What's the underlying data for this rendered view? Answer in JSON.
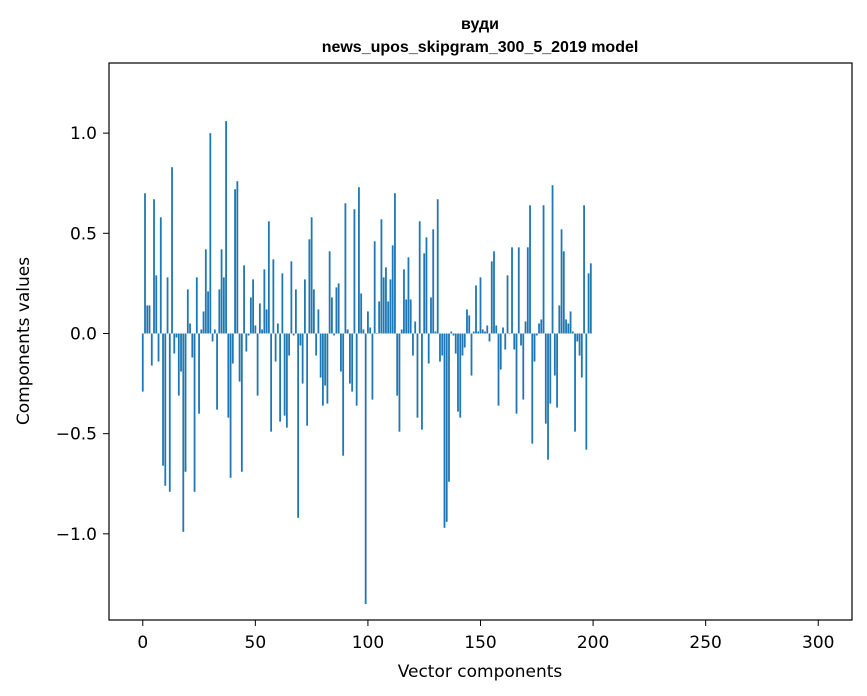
{
  "chart_data": {
    "type": "bar",
    "title_line1": "вуди",
    "title_line2": "news_upos_skipgram_300_5_2019 model",
    "xlabel": "Vector components",
    "ylabel": "Components values",
    "xlim": [
      -15,
      315
    ],
    "ylim": [
      -1.43,
      1.35
    ],
    "xticks": [
      0,
      50,
      100,
      150,
      200,
      250,
      300
    ],
    "xtick_labels": [
      "0",
      "50",
      "100",
      "150",
      "200",
      "250",
      "300"
    ],
    "yticks": [
      -1.0,
      -0.5,
      0.0,
      0.5,
      1.0
    ],
    "ytick_labels": [
      "−1.0",
      "−0.5",
      "0.0",
      "0.5",
      "1.0"
    ],
    "bar_color": "#1f77b4",
    "values": [
      -0.29,
      0.7,
      0.14,
      0.14,
      -0.16,
      0.67,
      0.29,
      -0.14,
      0.58,
      -0.66,
      -0.76,
      0.28,
      -0.79,
      0.83,
      -0.1,
      -0.02,
      -0.31,
      -0.19,
      -0.99,
      -0.69,
      0.22,
      0.05,
      -0.12,
      -0.79,
      0.28,
      -0.4,
      0.02,
      0.11,
      0.42,
      0.21,
      1.0,
      -0.04,
      0.02,
      -0.38,
      0.22,
      0.42,
      0.28,
      1.06,
      -0.42,
      -0.72,
      -0.15,
      0.72,
      0.76,
      -0.24,
      -0.69,
      0.34,
      -0.09,
      -0.01,
      0.18,
      0.27,
      0.04,
      -0.31,
      0.15,
      0.02,
      0.32,
      0.12,
      0.56,
      -0.49,
      0.37,
      -0.14,
      0.05,
      -0.44,
      0.3,
      -0.41,
      -0.47,
      -0.11,
      0.36,
      -0.01,
      0.22,
      -0.92,
      -0.06,
      -0.25,
      0.27,
      -0.46,
      0.47,
      0.58,
      0.22,
      -0.11,
      0.12,
      -0.22,
      -0.36,
      -0.26,
      -0.35,
      0.41,
      0.18,
      -0.01,
      0.23,
      0.25,
      -0.19,
      -0.61,
      0.65,
      0.02,
      -0.25,
      -0.29,
      0.62,
      -0.36,
      0.73,
      0.2,
      0.02,
      -1.35,
      0.11,
      0.03,
      -0.33,
      0.46,
      0.0,
      0.16,
      0.57,
      0.28,
      0.33,
      0.16,
      0.27,
      0.44,
      0.7,
      -0.31,
      -0.49,
      0.02,
      0.32,
      0.17,
      0.38,
      0.17,
      -0.11,
      0.06,
      -0.42,
      0.56,
      -0.48,
      0.4,
      0.48,
      -0.15,
      0.18,
      0.52,
      0.01,
      0.67,
      -0.14,
      -0.11,
      -0.97,
      -0.94,
      -0.74,
      0.01,
      -0.01,
      -0.1,
      -0.39,
      -0.42,
      -0.11,
      -0.07,
      0.12,
      0.09,
      -0.21,
      0.01,
      0.24,
      0.01,
      0.28,
      0.02,
      0.01,
      0.04,
      -0.04,
      0.36,
      0.41,
      0.04,
      -0.36,
      -0.18,
      0.03,
      -0.08,
      0.29,
      0.0,
      0.43,
      -0.08,
      -0.4,
      0.43,
      -0.06,
      -0.33,
      0.06,
      0.43,
      0.64,
      -0.55,
      -0.14,
      -0.01,
      0.05,
      0.07,
      0.64,
      -0.45,
      -0.63,
      -0.35,
      0.74,
      -0.21,
      -0.37,
      0.14,
      0.52,
      0.41,
      0.07,
      0.05,
      0.11,
      0.01,
      -0.49,
      -0.04,
      -0.11,
      -0.22,
      0.64,
      -0.58,
      0.3,
      0.35
    ]
  }
}
